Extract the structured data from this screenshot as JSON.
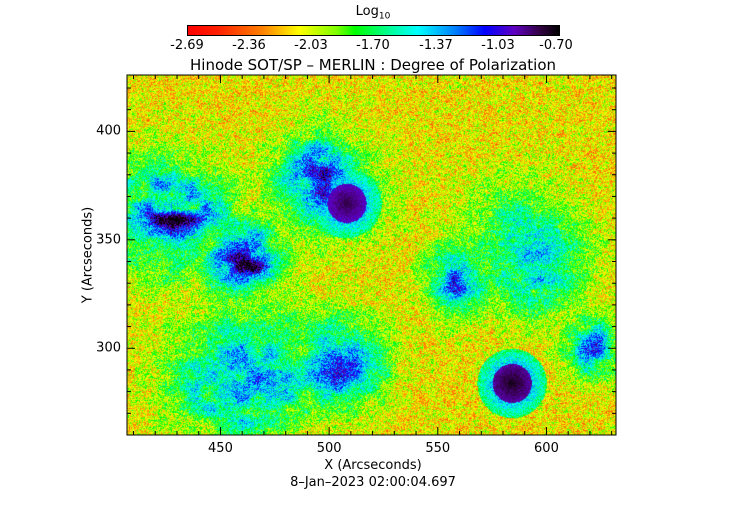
{
  "colorbar": {
    "label_base": "Log",
    "label_sub": "10",
    "ticks": [
      "-2.69",
      "-2.36",
      "-2.03",
      "-1.70",
      "-1.37",
      "-1.03",
      "-0.70"
    ],
    "range": [
      -2.69,
      -0.7
    ],
    "colormap": "rainbow (red → yellow → green → cyan → blue → purple → black)"
  },
  "chart_data": {
    "type": "heatmap",
    "title": "Hinode SOT/SP – MERLIN : Degree of Polarization",
    "xlabel": "X (Arcseconds)",
    "ylabel": "Y (Arcseconds)",
    "xlim": [
      407,
      632
    ],
    "ylim": [
      260,
      426
    ],
    "xticks": [
      "450",
      "500",
      "550",
      "600"
    ],
    "yticks": [
      "300",
      "350",
      "400"
    ],
    "value_unit": "Log10 degree of polarization",
    "features": [
      {
        "feature": "sunspot",
        "x": 508,
        "y": 367,
        "value": -0.85
      },
      {
        "feature": "sunspot",
        "x": 584,
        "y": 284,
        "value": -0.8
      }
    ],
    "background_value_approx": -2.6
  },
  "timestamp": "8–Jan–2023 02:00:04.697"
}
